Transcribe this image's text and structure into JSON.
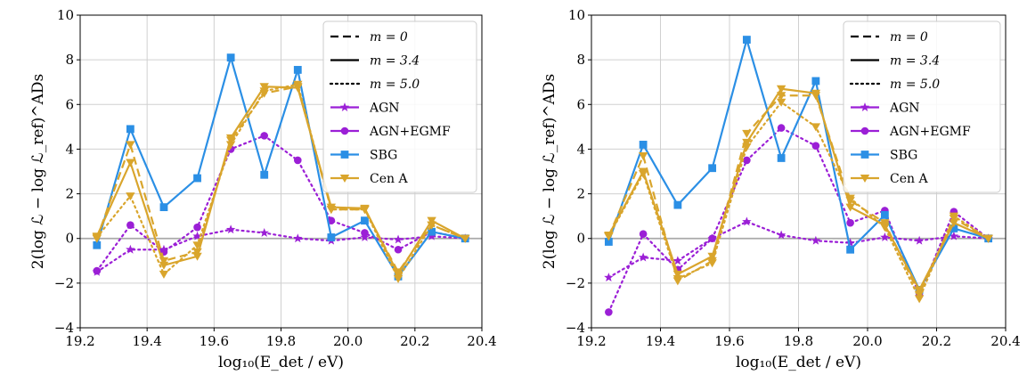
{
  "chart_data": [
    {
      "type": "line",
      "xlabel": "log₁₀(E_det / eV)",
      "ylabel": "2(log ℒ − log ℒ_ref)^ADs",
      "xlim": [
        19.2,
        20.4
      ],
      "ylim": [
        -4,
        10
      ],
      "xticks": [
        "19.2",
        "19.4",
        "19.6",
        "19.8",
        "20.0",
        "20.2",
        "20.4"
      ],
      "yticks": [
        "−4",
        "−2",
        "0",
        "2",
        "4",
        "6",
        "8",
        "10"
      ],
      "grid": true,
      "legend_position": "top-right",
      "x": [
        19.25,
        19.35,
        19.45,
        19.55,
        19.65,
        19.75,
        19.85,
        19.95,
        20.05,
        20.15,
        20.25,
        20.35
      ],
      "series": [
        {
          "name": "AGN",
          "model": "AGN",
          "m": "5.0",
          "values": [
            -1.5,
            -0.5,
            -0.5,
            0.1,
            0.4,
            0.25,
            0.0,
            -0.1,
            0.05,
            -0.05,
            0.1,
            0.0
          ]
        },
        {
          "name": "AGN+EGMF",
          "model": "AGN+EGMF",
          "m": "5.0",
          "values": [
            -1.45,
            0.6,
            -0.6,
            0.5,
            4.0,
            4.6,
            3.5,
            0.8,
            0.25,
            -0.5,
            0.3,
            0.0
          ]
        },
        {
          "name": "SBG",
          "model": "SBG",
          "m": "3.4",
          "values": [
            -0.3,
            4.9,
            1.4,
            2.7,
            8.1,
            2.85,
            7.55,
            0.05,
            0.8,
            -1.7,
            0.3,
            0.0
          ]
        },
        {
          "name": "Cen A",
          "model": "Cen A",
          "m": "0",
          "values": [
            0.0,
            4.2,
            -1.0,
            -0.6,
            4.4,
            6.5,
            6.8,
            1.3,
            1.3,
            -1.5,
            0.6,
            0.0
          ]
        },
        {
          "name": "Cen A",
          "model": "Cen A",
          "m": "3.4",
          "values": [
            0.1,
            3.4,
            -1.2,
            -0.8,
            4.5,
            6.8,
            6.75,
            1.4,
            1.35,
            -1.6,
            0.8,
            0.0
          ]
        },
        {
          "name": "Cen A",
          "model": "Cen A",
          "m": "5.0",
          "values": [
            0.05,
            1.9,
            -1.6,
            -0.3,
            4.2,
            6.6,
            6.9,
            1.3,
            1.3,
            -1.8,
            0.6,
            0.0
          ]
        }
      ]
    },
    {
      "type": "line",
      "xlabel": "log₁₀(E_det / eV)",
      "ylabel": "2(log ℒ − log ℒ_ref)^ADs",
      "xlim": [
        19.2,
        20.4
      ],
      "ylim": [
        -4,
        10
      ],
      "xticks": [
        "19.2",
        "19.4",
        "19.6",
        "19.8",
        "20.0",
        "20.2",
        "20.4"
      ],
      "yticks": [
        "−4",
        "−2",
        "0",
        "2",
        "4",
        "6",
        "8",
        "10"
      ],
      "grid": true,
      "legend_position": "top-right",
      "x": [
        19.25,
        19.35,
        19.45,
        19.55,
        19.65,
        19.75,
        19.85,
        19.95,
        20.05,
        20.15,
        20.25,
        20.35
      ],
      "series": [
        {
          "name": "AGN",
          "model": "AGN",
          "m": "5.0",
          "values": [
            -1.75,
            -0.85,
            -1.0,
            0.0,
            0.75,
            0.15,
            -0.1,
            -0.2,
            0.05,
            -0.1,
            0.1,
            0.0
          ]
        },
        {
          "name": "AGN+EGMF",
          "model": "AGN+EGMF",
          "m": "5.0",
          "values": [
            -3.3,
            0.2,
            -1.4,
            0.0,
            3.5,
            4.95,
            4.15,
            0.7,
            1.25,
            -2.55,
            1.2,
            0.0
          ]
        },
        {
          "name": "SBG",
          "model": "SBG",
          "m": "3.4",
          "values": [
            -0.15,
            4.2,
            1.5,
            3.15,
            8.9,
            3.6,
            7.05,
            -0.5,
            1.05,
            -2.3,
            0.45,
            0.0
          ]
        },
        {
          "name": "Cen A",
          "model": "Cen A",
          "m": "0",
          "values": [
            0.1,
            3.7,
            -1.9,
            -1.0,
            4.7,
            6.4,
            6.4,
            1.7,
            0.7,
            -2.5,
            0.9,
            0.0
          ]
        },
        {
          "name": "Cen A",
          "model": "Cen A",
          "m": "3.4",
          "values": [
            0.15,
            3.0,
            -1.6,
            -0.8,
            4.3,
            6.7,
            6.5,
            1.4,
            0.6,
            -2.3,
            0.7,
            0.0
          ]
        },
        {
          "name": "Cen A",
          "model": "Cen A",
          "m": "5.0",
          "values": [
            0.1,
            2.9,
            -1.8,
            -1.1,
            4.1,
            6.1,
            5.0,
            1.8,
            0.5,
            -2.7,
            1.0,
            0.0
          ]
        }
      ]
    }
  ],
  "legend": {
    "line_styles": [
      {
        "label": "m = 0",
        "style": "dashed"
      },
      {
        "label": "m = 3.4",
        "style": "solid"
      },
      {
        "label": "m = 5.0",
        "style": "dotted"
      }
    ],
    "models": [
      {
        "label": "AGN",
        "color": "#9b1fd6",
        "marker": "star"
      },
      {
        "label": "AGN+EGMF",
        "color": "#9b1fd6",
        "marker": "circle"
      },
      {
        "label": "SBG",
        "color": "#2b8fe5",
        "marker": "square"
      },
      {
        "label": "Cen A",
        "color": "#d9a52c",
        "marker": "triangle-down"
      }
    ]
  },
  "colors": {
    "AGN": "#9b1fd6",
    "AGN+EGMF": "#9b1fd6",
    "SBG": "#2b8fe5",
    "Cen A": "#d9a52c",
    "grid": "#d0d0d0",
    "zero_line": "#aaaaaa"
  }
}
